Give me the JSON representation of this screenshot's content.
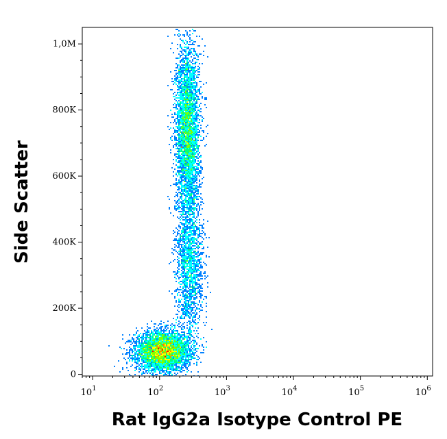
{
  "chart_data": {
    "type": "scatter",
    "style": "density-dot-plot",
    "xlabel": "Rat IgG2a Isotype Control PE",
    "ylabel": "Side Scatter",
    "x_scale": "log",
    "xlim": [
      7,
      1200000
    ],
    "ylim": [
      -5000,
      1050000
    ],
    "x_ticks": [
      {
        "value": 10,
        "base": "10",
        "exp": "1"
      },
      {
        "value": 100,
        "base": "10",
        "exp": "2"
      },
      {
        "value": 1000,
        "base": "10",
        "exp": "3"
      },
      {
        "value": 10000,
        "base": "10",
        "exp": "4"
      },
      {
        "value": 100000,
        "base": "10",
        "exp": "5"
      },
      {
        "value": 1000000,
        "base": "10",
        "exp": "6"
      }
    ],
    "y_ticks": [
      {
        "value": 0,
        "label": "0"
      },
      {
        "value": 200000,
        "label": "200K"
      },
      {
        "value": 400000,
        "label": "400K"
      },
      {
        "value": 600000,
        "label": "600K"
      },
      {
        "value": 800000,
        "label": "800K"
      },
      {
        "value": 1000000,
        "label": "1,0M"
      }
    ],
    "grid": false,
    "legend": "none",
    "colormap": [
      "#0000ff",
      "#0080ff",
      "#00ffff",
      "#00ff80",
      "#80ff00",
      "#ffff00",
      "#ff8000",
      "#ff0000"
    ],
    "populations": [
      {
        "x_log_center": 2.05,
        "x_log_sd": 0.2,
        "y_center": 70000,
        "y_sd": 30000,
        "count": 4500,
        "peak_density": 1.0
      },
      {
        "x_log_center": 2.42,
        "x_log_sd": 0.09,
        "y_center": 740000,
        "y_sd": 130000,
        "count": 4000,
        "peak_density": 0.5
      },
      {
        "x_log_center": 2.45,
        "x_log_sd": 0.1,
        "y_center": 330000,
        "y_sd": 120000,
        "count": 1800,
        "peak_density": 0.15
      }
    ]
  }
}
